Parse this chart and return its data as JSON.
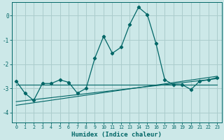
{
  "xlabel": "Humidex (Indice chaleur)",
  "background_color": "#cce8e8",
  "grid_color": "#aacccc",
  "line_color": "#006666",
  "xlim": [
    -0.5,
    23.5
  ],
  "ylim": [
    -4.4,
    0.55
  ],
  "yticks": [
    0,
    -1,
    -2,
    -3,
    -4
  ],
  "xticks": [
    0,
    1,
    2,
    3,
    4,
    5,
    6,
    7,
    8,
    9,
    10,
    11,
    12,
    13,
    14,
    15,
    16,
    17,
    18,
    19,
    20,
    21,
    22,
    23
  ],
  "main_line_x": [
    0,
    1,
    2,
    3,
    4,
    5,
    6,
    7,
    8,
    9,
    10,
    11,
    12,
    13,
    14,
    15,
    16,
    17,
    18,
    19,
    20,
    21,
    22,
    23
  ],
  "main_line_y": [
    -2.7,
    -3.2,
    -3.5,
    -2.8,
    -2.8,
    -2.65,
    -2.75,
    -3.2,
    -3.0,
    -1.75,
    -0.85,
    -1.55,
    -1.3,
    -0.35,
    0.35,
    0.05,
    -1.15,
    -2.65,
    -2.85,
    -2.85,
    -3.05,
    -2.7,
    -2.65,
    -2.55
  ],
  "flat_line_x": [
    0,
    23
  ],
  "flat_line_y": [
    -2.85,
    -2.85
  ],
  "reg_line1_x": [
    0,
    23
  ],
  "reg_line1_y": [
    -3.55,
    -2.6
  ],
  "reg_line2_x": [
    0,
    23
  ],
  "reg_line2_y": [
    -3.7,
    -2.5
  ]
}
